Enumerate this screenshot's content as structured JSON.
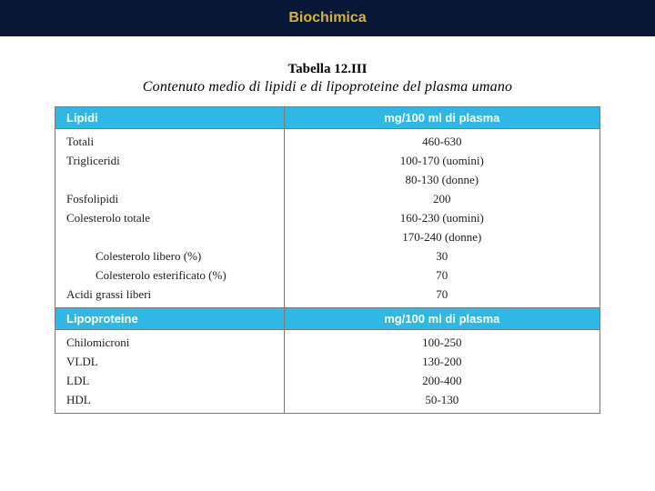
{
  "title_bar": {
    "text": "Biochimica",
    "bg": "#0a1838",
    "fg": "#d6b43a"
  },
  "table": {
    "number": "Tabella 12.III",
    "caption": "Contenuto medio di lipidi e di lipoproteine del plasma umano",
    "header_bg": "#2fb8e6",
    "header_fg": "#ffffff",
    "sections": [
      {
        "col_left": "Lipidi",
        "col_right": "mg/100 ml di plasma",
        "rows": [
          {
            "label": "Totali",
            "value": "460-630",
            "indent": false
          },
          {
            "label": "Trigliceridi",
            "value": "100-170 (uomini)",
            "indent": false
          },
          {
            "label": "",
            "value": "80-130 (donne)",
            "indent": false
          },
          {
            "label": "Fosfolipidi",
            "value": "200",
            "indent": false
          },
          {
            "label": "Colesterolo totale",
            "value": "160-230 (uomini)",
            "indent": false
          },
          {
            "label": "",
            "value": "170-240 (donne)",
            "indent": false
          },
          {
            "label": "Colesterolo libero (%)",
            "value": "30",
            "indent": true
          },
          {
            "label": "Colesterolo esterificato (%)",
            "value": "70",
            "indent": true
          },
          {
            "label": "Acidi grassi liberi",
            "value": "70",
            "indent": false
          }
        ]
      },
      {
        "col_left": "Lipoproteine",
        "col_right": "mg/100 ml di plasma",
        "rows": [
          {
            "label": "Chilomicroni",
            "value": "100-250",
            "indent": false
          },
          {
            "label": "VLDL",
            "value": "130-200",
            "indent": false
          },
          {
            "label": "LDL",
            "value": "200-400",
            "indent": false
          },
          {
            "label": "HDL",
            "value": "50-130",
            "indent": false
          }
        ]
      }
    ]
  }
}
